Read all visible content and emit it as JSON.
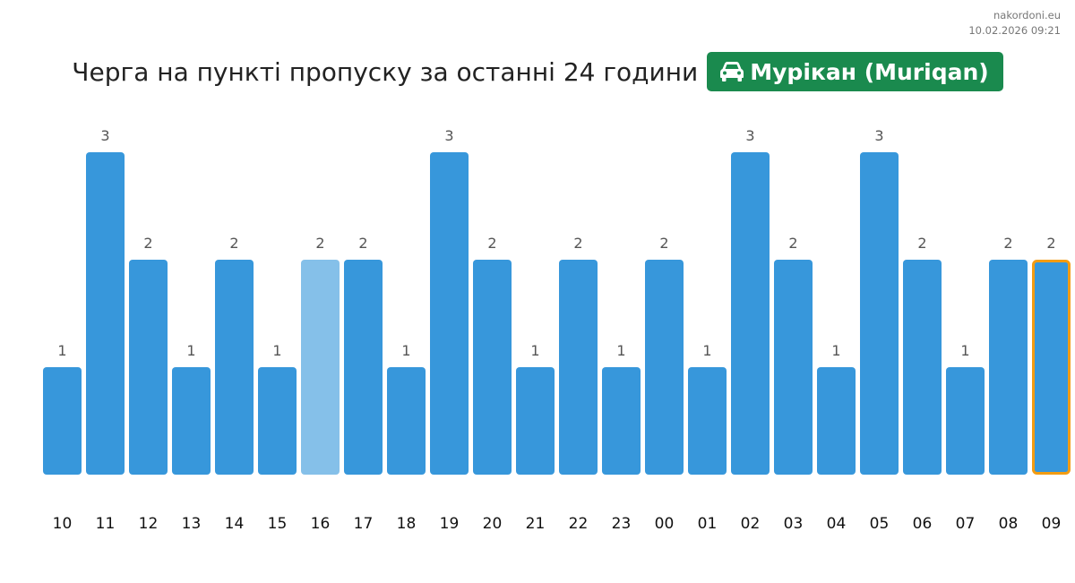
{
  "site": "nakordoni.eu",
  "timestamp": "10.02.2026 09:21",
  "header": {
    "title": "Черга на пункті пропуску за останні 24 години",
    "checkpoint": "Мурікан (Muriqan)",
    "vehicle_icon": "car-icon"
  },
  "colors": {
    "bar": "#3797db",
    "bar_highlight": "#85c0e9",
    "current_outline": "#f39c12",
    "badge": "#1a8a4e"
  },
  "chart_data": {
    "type": "bar",
    "categories": [
      "10",
      "11",
      "12",
      "13",
      "14",
      "15",
      "16",
      "17",
      "18",
      "19",
      "20",
      "21",
      "22",
      "23",
      "00",
      "01",
      "02",
      "03",
      "04",
      "05",
      "06",
      "07",
      "08",
      "09"
    ],
    "values": [
      1,
      3,
      2,
      1,
      2,
      1,
      2,
      2,
      1,
      3,
      2,
      1,
      2,
      1,
      2,
      1,
      3,
      2,
      1,
      3,
      2,
      1,
      2,
      2
    ],
    "highlighted_category": "16",
    "current_category": "09",
    "ylim": [
      0,
      3
    ],
    "grid": false,
    "legend": "none"
  }
}
